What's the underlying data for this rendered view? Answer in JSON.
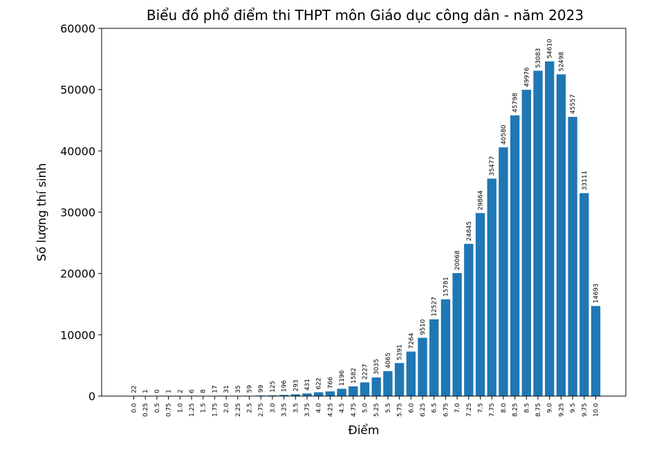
{
  "chart_data": {
    "type": "bar",
    "title": "Biểu đồ phổ điểm thi THPT môn Giáo dục công dân - năm 2023",
    "xlabel": "Điểm",
    "ylabel": "Số lượng thí sinh",
    "ylim": [
      0,
      60000
    ],
    "yticks": [
      "0",
      "10000",
      "20000",
      "30000",
      "40000",
      "50000",
      "60000"
    ],
    "grid": false,
    "bar_color": "#1f77b4",
    "categories": [
      "0.0",
      "0.25",
      "0.5",
      "0.75",
      "1.0",
      "1.25",
      "1.5",
      "1.75",
      "2.0",
      "2.25",
      "2.5",
      "2.75",
      "3.0",
      "3.25",
      "3.5",
      "3.75",
      "4.0",
      "4.25",
      "4.5",
      "4.75",
      "5.0",
      "5.25",
      "5.5",
      "5.75",
      "6.0",
      "6.25",
      "6.5",
      "6.75",
      "7.0",
      "7.25",
      "7.5",
      "7.75",
      "8.0",
      "8.25",
      "8.5",
      "8.75",
      "9.0",
      "9.25",
      "9.5",
      "9.75",
      "10.0"
    ],
    "values": [
      22,
      1,
      0,
      1,
      2,
      6,
      8,
      17,
      31,
      35,
      59,
      99,
      125,
      196,
      293,
      431,
      622,
      766,
      1196,
      1582,
      2227,
      3035,
      4065,
      5391,
      7264,
      9510,
      12527,
      15781,
      20068,
      24845,
      29864,
      35477,
      40580,
      45798,
      49976,
      53083,
      54610,
      52498,
      45557,
      33111,
      14693
    ]
  }
}
